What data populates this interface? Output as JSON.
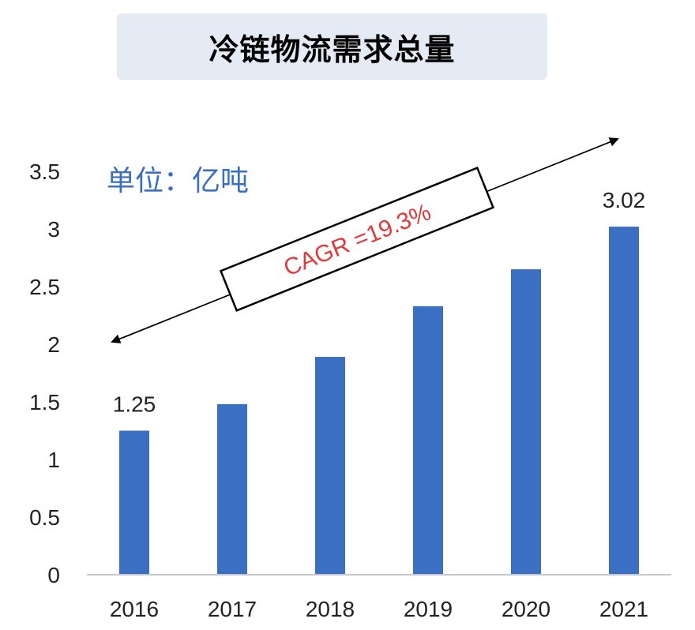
{
  "chart_data": {
    "type": "bar",
    "title": "冷链物流需求总量",
    "unit_label": "单位：亿吨",
    "categories": [
      "2016",
      "2017",
      "2018",
      "2019",
      "2020",
      "2021"
    ],
    "values": [
      1.25,
      1.48,
      1.89,
      2.33,
      2.65,
      3.02
    ],
    "data_labels": [
      {
        "index": 0,
        "text": "1.25"
      },
      {
        "index": 5,
        "text": "3.02"
      }
    ],
    "yticks": [
      "0",
      "0.5",
      "1",
      "1.5",
      "2",
      "2.5",
      "3",
      "3.5"
    ],
    "ylim": [
      0,
      3.5
    ],
    "bar_color": "#3a6fc4",
    "annotation": {
      "text": "CAGR =19.3%",
      "color": "#e03a3a"
    },
    "grid": false
  }
}
